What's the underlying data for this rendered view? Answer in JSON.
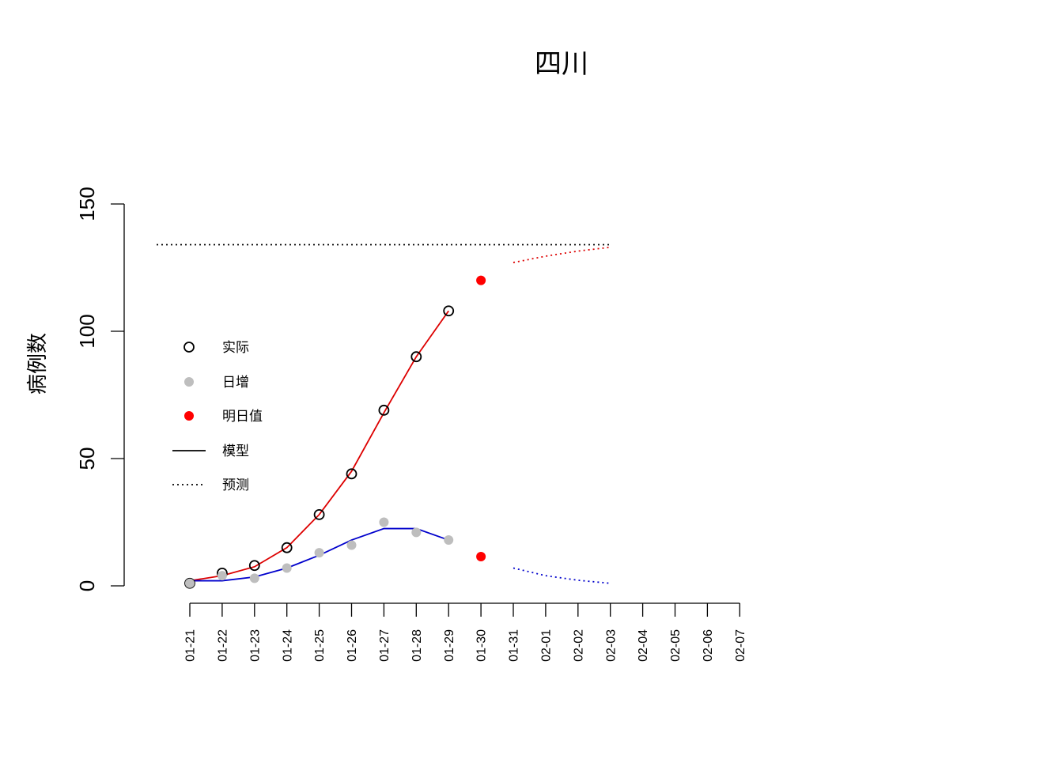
{
  "chart_data": {
    "type": "line",
    "title": "四川",
    "xlabel": "",
    "ylabel": "病例数",
    "ylim": [
      0,
      150
    ],
    "yticks": [
      0,
      50,
      100,
      150
    ],
    "categories": [
      "01-21",
      "01-22",
      "01-23",
      "01-24",
      "01-25",
      "01-26",
      "01-27",
      "01-28",
      "01-29",
      "01-30",
      "01-31",
      "02-01",
      "02-02",
      "02-03",
      "02-04",
      "02-05",
      "02-06",
      "02-07"
    ],
    "grid": false,
    "legend": {
      "placement": "left",
      "entries": [
        {
          "label": "实际",
          "style": "open-circle",
          "color": "#000000"
        },
        {
          "label": "日增",
          "style": "filled-circle",
          "color": "#bebebe"
        },
        {
          "label": "明日值",
          "style": "filled-circle",
          "color": "#ff0000"
        },
        {
          "label": "模型",
          "style": "solid-line",
          "color": "#000000"
        },
        {
          "label": "预测",
          "style": "dotted-line",
          "color": "#000000"
        }
      ]
    },
    "series": [
      {
        "name": "实际",
        "marker": "open-circle",
        "color": "#000000",
        "points": [
          [
            0,
            1
          ],
          [
            1,
            5
          ],
          [
            2,
            8
          ],
          [
            3,
            15
          ],
          [
            4,
            28
          ],
          [
            5,
            44
          ],
          [
            6,
            69
          ],
          [
            7,
            90
          ],
          [
            8,
            108
          ]
        ]
      },
      {
        "name": "日增",
        "marker": "filled-circle",
        "color": "#bebebe",
        "points": [
          [
            0,
            1
          ],
          [
            1,
            4
          ],
          [
            2,
            3
          ],
          [
            3,
            7
          ],
          [
            4,
            13
          ],
          [
            5,
            16
          ],
          [
            6,
            25
          ],
          [
            7,
            21
          ],
          [
            8,
            18
          ]
        ]
      },
      {
        "name": "明日值",
        "marker": "filled-circle",
        "color": "#ff0000",
        "points": [
          [
            9,
            120
          ],
          [
            9,
            11.5
          ]
        ]
      },
      {
        "name": "模型",
        "line": "solid",
        "color": "#dd0000",
        "points": [
          [
            0,
            2
          ],
          [
            1,
            4
          ],
          [
            2,
            7.5
          ],
          [
            3,
            15
          ],
          [
            4,
            28
          ],
          [
            5,
            45
          ],
          [
            6,
            68
          ],
          [
            7,
            90
          ],
          [
            8,
            108
          ]
        ]
      },
      {
        "name": "模型",
        "line": "solid",
        "color": "#0000cc",
        "points": [
          [
            0,
            2
          ],
          [
            1,
            2
          ],
          [
            2,
            3.5
          ],
          [
            3,
            7
          ],
          [
            4,
            12
          ],
          [
            5,
            18
          ],
          [
            6,
            22.5
          ],
          [
            7,
            22.5
          ],
          [
            8,
            18
          ]
        ]
      },
      {
        "name": "预测",
        "line": "dotted",
        "color": "#dd0000",
        "points": [
          [
            10,
            127
          ],
          [
            11,
            129.5
          ],
          [
            12,
            131.5
          ],
          [
            13,
            133
          ]
        ]
      },
      {
        "name": "预测",
        "line": "dotted",
        "color": "#0000cc",
        "points": [
          [
            10,
            7
          ],
          [
            11,
            4
          ],
          [
            12,
            2.2
          ],
          [
            13,
            1
          ]
        ]
      },
      {
        "name": "预测",
        "line": "dotted",
        "color": "#000000",
        "points": [
          [
            -1,
            134
          ],
          [
            13,
            134
          ]
        ]
      }
    ]
  }
}
